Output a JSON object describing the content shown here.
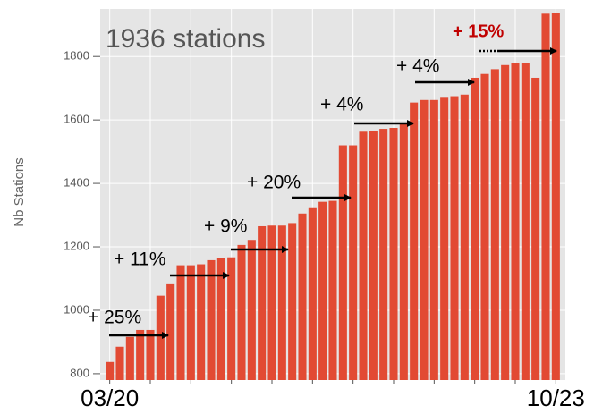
{
  "chart_data": {
    "type": "bar",
    "title": "1936 stations",
    "y_label": "Nb Stations",
    "categories": [
      "03/20",
      null,
      null,
      null,
      null,
      null,
      null,
      null,
      null,
      null,
      null,
      null,
      null,
      null,
      null,
      null,
      null,
      null,
      null,
      null,
      null,
      null,
      null,
      null,
      null,
      null,
      null,
      null,
      null,
      null,
      null,
      null,
      null,
      null,
      null,
      null,
      null,
      null,
      null,
      null,
      null,
      null,
      null,
      null,
      "10/23"
    ],
    "values": [
      837,
      885,
      916,
      938,
      938,
      1046,
      1082,
      1142,
      1142,
      1145,
      1158,
      1165,
      1167,
      1206,
      1222,
      1265,
      1267,
      1267,
      1275,
      1305,
      1322,
      1342,
      1345,
      1520,
      1520,
      1563,
      1565,
      1572,
      1575,
      1590,
      1655,
      1663,
      1663,
      1670,
      1675,
      1680,
      1733,
      1745,
      1760,
      1773,
      1778,
      1780,
      1733,
      1935,
      1936
    ],
    "color": "#e24a33",
    "ylim": [
      780,
      1950
    ],
    "yticks": [
      800,
      1000,
      1200,
      1400,
      1600,
      1800
    ],
    "grid": true,
    "annotations": [
      {
        "text": "+ 25%",
        "color": "#000000"
      },
      {
        "text": "+ 11%",
        "color": "#000000"
      },
      {
        "text": "+ 9%",
        "color": "#000000"
      },
      {
        "text": "+ 20%",
        "color": "#000000"
      },
      {
        "text": "+ 4%",
        "color": "#000000"
      },
      {
        "text": "+ 4%",
        "color": "#000000"
      },
      {
        "text": "+ 15%",
        "color": "#c00000"
      }
    ]
  }
}
